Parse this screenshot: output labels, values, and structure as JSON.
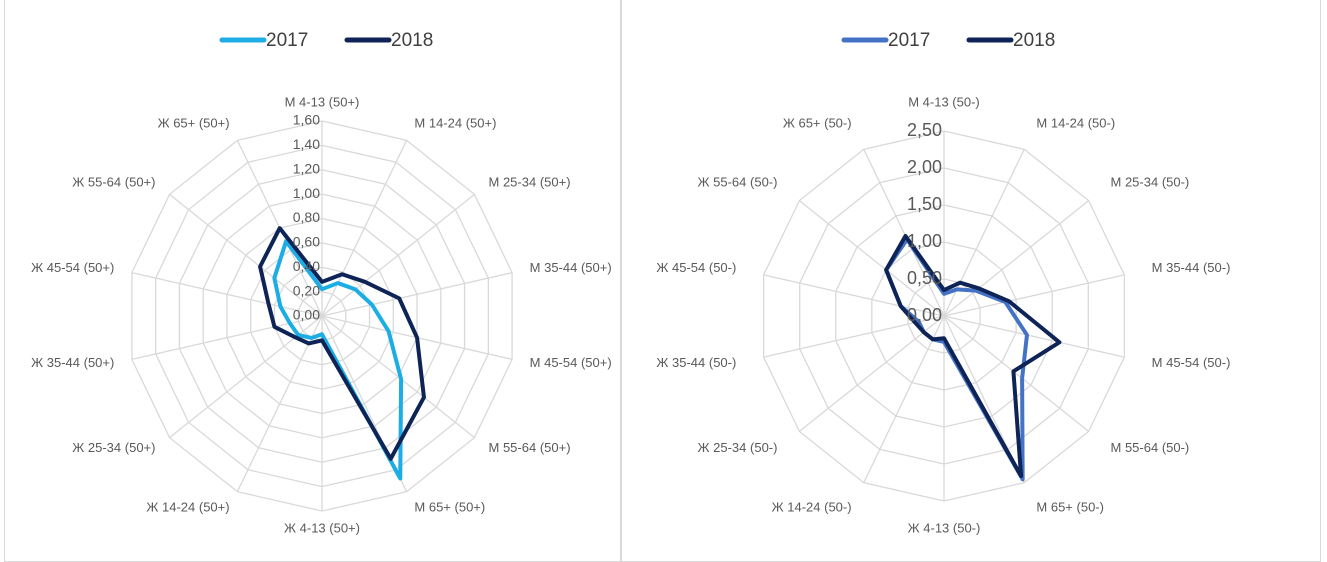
{
  "chart_data": [
    {
      "type": "radar",
      "categories": [
        "М 4-13 (50+)",
        "М 14-24 (50+)",
        "М 25-34 (50+)",
        "М 35-44 (50+)",
        "М 45-54 (50+)",
        "М 55-64 (50+)",
        "М 65+ (50+)",
        "Ж 4-13 (50+)",
        "Ж 14-24 (50+)",
        "Ж 25-34 (50+)",
        "Ж 35-44 (50+)",
        "Ж 45-54 (50+)",
        "Ж 55-64 (50+)",
        "Ж 65+ (50+)"
      ],
      "series": [
        {
          "name": "2017",
          "color": "#1cade4",
          "values": [
            0.22,
            0.3,
            0.35,
            0.42,
            0.56,
            0.83,
            1.48,
            0.15,
            0.2,
            0.25,
            0.27,
            0.35,
            0.5,
            0.68
          ]
        },
        {
          "name": "2018",
          "color": "#0e2356",
          "values": [
            0.28,
            0.38,
            0.45,
            0.65,
            0.8,
            1.07,
            1.3,
            0.2,
            0.25,
            0.28,
            0.4,
            0.45,
            0.65,
            0.8
          ]
        }
      ],
      "ylim": [
        0,
        1.6
      ],
      "yticks": [
        {
          "value": 0,
          "label": "0,00"
        },
        {
          "value": 0.2,
          "label": "0,20"
        },
        {
          "value": 0.4,
          "label": "0,40"
        },
        {
          "value": 0.6,
          "label": "0,60"
        },
        {
          "value": 0.8,
          "label": "0,80"
        },
        {
          "value": 1.0,
          "label": "1,00"
        },
        {
          "value": 1.2,
          "label": "1,20"
        },
        {
          "value": 1.4,
          "label": "1,40"
        },
        {
          "value": 1.6,
          "label": "1,60"
        }
      ],
      "legend": "top",
      "grid": true
    },
    {
      "type": "radar",
      "categories": [
        "М 4-13 (50-)",
        "М 14-24 (50-)",
        "М 25-34 (50-)",
        "М 35-44 (50-)",
        "М 45-54 (50-)",
        "М 55-64 (50-)",
        "М 65+ (50-)",
        "Ж 4-13 (50-)",
        "Ж 14-24 (50-)",
        "Ж 25-34 (50-)",
        "Ж 35-44 (50-)",
        "Ж 45-54 (50-)",
        "Ж 55-64 (50-)",
        "Ж 65+ (50-)"
      ],
      "series": [
        {
          "name": "2017",
          "color": "#4472c4",
          "values": [
            0.3,
            0.4,
            0.55,
            0.85,
            1.15,
            1.35,
            2.45,
            0.35,
            0.35,
            0.35,
            0.35,
            0.6,
            1.0,
            1.15
          ]
        },
        {
          "name": "2018",
          "color": "#0e2356",
          "values": [
            0.35,
            0.5,
            0.6,
            0.9,
            1.6,
            1.2,
            2.4,
            0.3,
            0.35,
            0.35,
            0.4,
            0.6,
            1.0,
            1.2
          ]
        }
      ],
      "ylim": [
        0,
        2.5
      ],
      "yticks": [
        {
          "value": 0,
          "label": "0,00"
        },
        {
          "value": 0.5,
          "label": "0,50"
        },
        {
          "value": 1.0,
          "label": "1,00"
        },
        {
          "value": 1.5,
          "label": "1,50"
        },
        {
          "value": 2.0,
          "label": "2,00"
        },
        {
          "value": 2.5,
          "label": "2,50"
        }
      ],
      "legend": "top",
      "grid": true
    }
  ]
}
